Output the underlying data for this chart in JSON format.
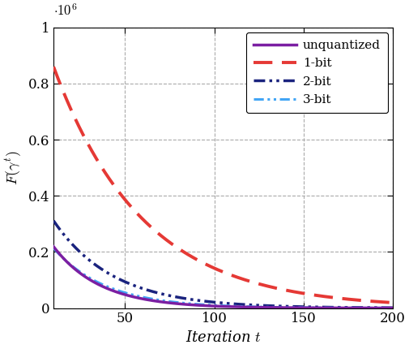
{
  "title": "",
  "xlabel": "Iteration $t$",
  "ylabel": "$F(\\gamma^t)$",
  "xlim": [
    10,
    200
  ],
  "ylim": [
    0,
    1000000
  ],
  "yticks": [
    0,
    200000,
    400000,
    600000,
    800000,
    1000000
  ],
  "xticks": [
    50,
    100,
    150,
    200
  ],
  "series": [
    {
      "label": "unquantized",
      "color": "#7b1fa2",
      "linewidth": 2.5,
      "a": 320000,
      "decay": 0.038,
      "style": "solid"
    },
    {
      "label": "1-bit",
      "color": "#e53935",
      "linewidth": 2.8,
      "a": 1050000,
      "decay": 0.02,
      "style": "dashed_large"
    },
    {
      "label": "2-bit",
      "color": "#1a237e",
      "linewidth": 2.5,
      "a": 420000,
      "decay": 0.03,
      "style": "dashdotdot"
    },
    {
      "label": "3-bit",
      "color": "#42a5f5",
      "linewidth": 2.2,
      "a": 300000,
      "decay": 0.034,
      "style": "dashdotdot"
    }
  ],
  "figsize": [
    5.06,
    4.3
  ],
  "dpi": 100,
  "grid_color": "#aaaaaa",
  "background_color": "#ffffff"
}
